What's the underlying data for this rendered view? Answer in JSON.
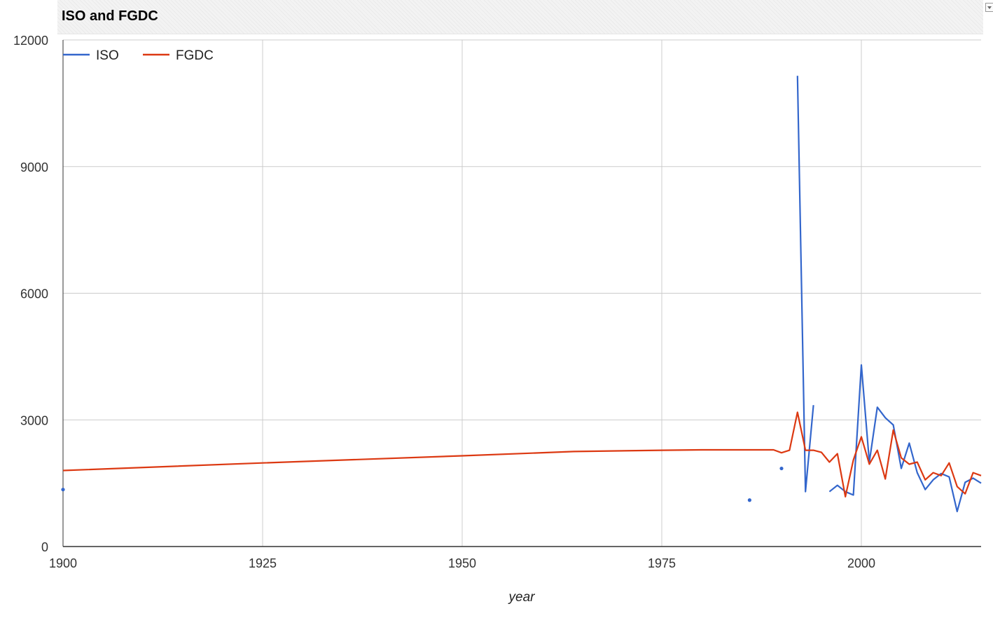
{
  "chart_data": {
    "type": "line",
    "title": "ISO and FGDC",
    "xlabel": "year",
    "ylabel": "",
    "xlim": [
      1900,
      2015
    ],
    "ylim": [
      0,
      12000
    ],
    "x_ticks": [
      1900,
      1925,
      1950,
      1975,
      2000
    ],
    "y_ticks": [
      0,
      3000,
      6000,
      9000,
      12000
    ],
    "grid": true,
    "legend_position": "top-left",
    "series": [
      {
        "name": "ISO",
        "color": "#3366cc",
        "points": [
          [
            1900,
            1350
          ],
          [
            1986,
            1100
          ],
          [
            1990,
            1850
          ],
          [
            1992,
            11150
          ],
          [
            1993,
            1300
          ],
          [
            1994,
            3350
          ],
          [
            1996,
            1300
          ],
          [
            1997,
            1450
          ],
          [
            1998,
            1300
          ],
          [
            1999,
            1220
          ],
          [
            2000,
            4300
          ],
          [
            2001,
            2000
          ],
          [
            2002,
            3300
          ],
          [
            2003,
            3050
          ],
          [
            2004,
            2880
          ],
          [
            2005,
            1850
          ],
          [
            2006,
            2450
          ],
          [
            2007,
            1750
          ],
          [
            2008,
            1350
          ],
          [
            2009,
            1580
          ],
          [
            2010,
            1730
          ],
          [
            2011,
            1650
          ],
          [
            2012,
            830
          ],
          [
            2013,
            1520
          ],
          [
            2014,
            1620
          ],
          [
            2015,
            1500
          ]
        ]
      },
      {
        "name": "FGDC",
        "color": "#dc3912",
        "points": [
          [
            1900,
            1800
          ],
          [
            1925,
            1980
          ],
          [
            1950,
            2150
          ],
          [
            1964,
            2250
          ],
          [
            1975,
            2280
          ],
          [
            1980,
            2290
          ],
          [
            1989,
            2290
          ],
          [
            1990,
            2220
          ],
          [
            1991,
            2280
          ],
          [
            1992,
            3180
          ],
          [
            1993,
            2280
          ],
          [
            1994,
            2280
          ],
          [
            1995,
            2230
          ],
          [
            1996,
            2000
          ],
          [
            1997,
            2200
          ],
          [
            1998,
            1180
          ],
          [
            1999,
            2050
          ],
          [
            2000,
            2600
          ],
          [
            2001,
            1950
          ],
          [
            2002,
            2280
          ],
          [
            2003,
            1600
          ],
          [
            2004,
            2760
          ],
          [
            2005,
            2100
          ],
          [
            2006,
            1950
          ],
          [
            2007,
            2000
          ],
          [
            2008,
            1580
          ],
          [
            2009,
            1750
          ],
          [
            2010,
            1680
          ],
          [
            2011,
            1980
          ],
          [
            2012,
            1420
          ],
          [
            2013,
            1250
          ],
          [
            2014,
            1750
          ],
          [
            2015,
            1680
          ]
        ]
      }
    ]
  }
}
